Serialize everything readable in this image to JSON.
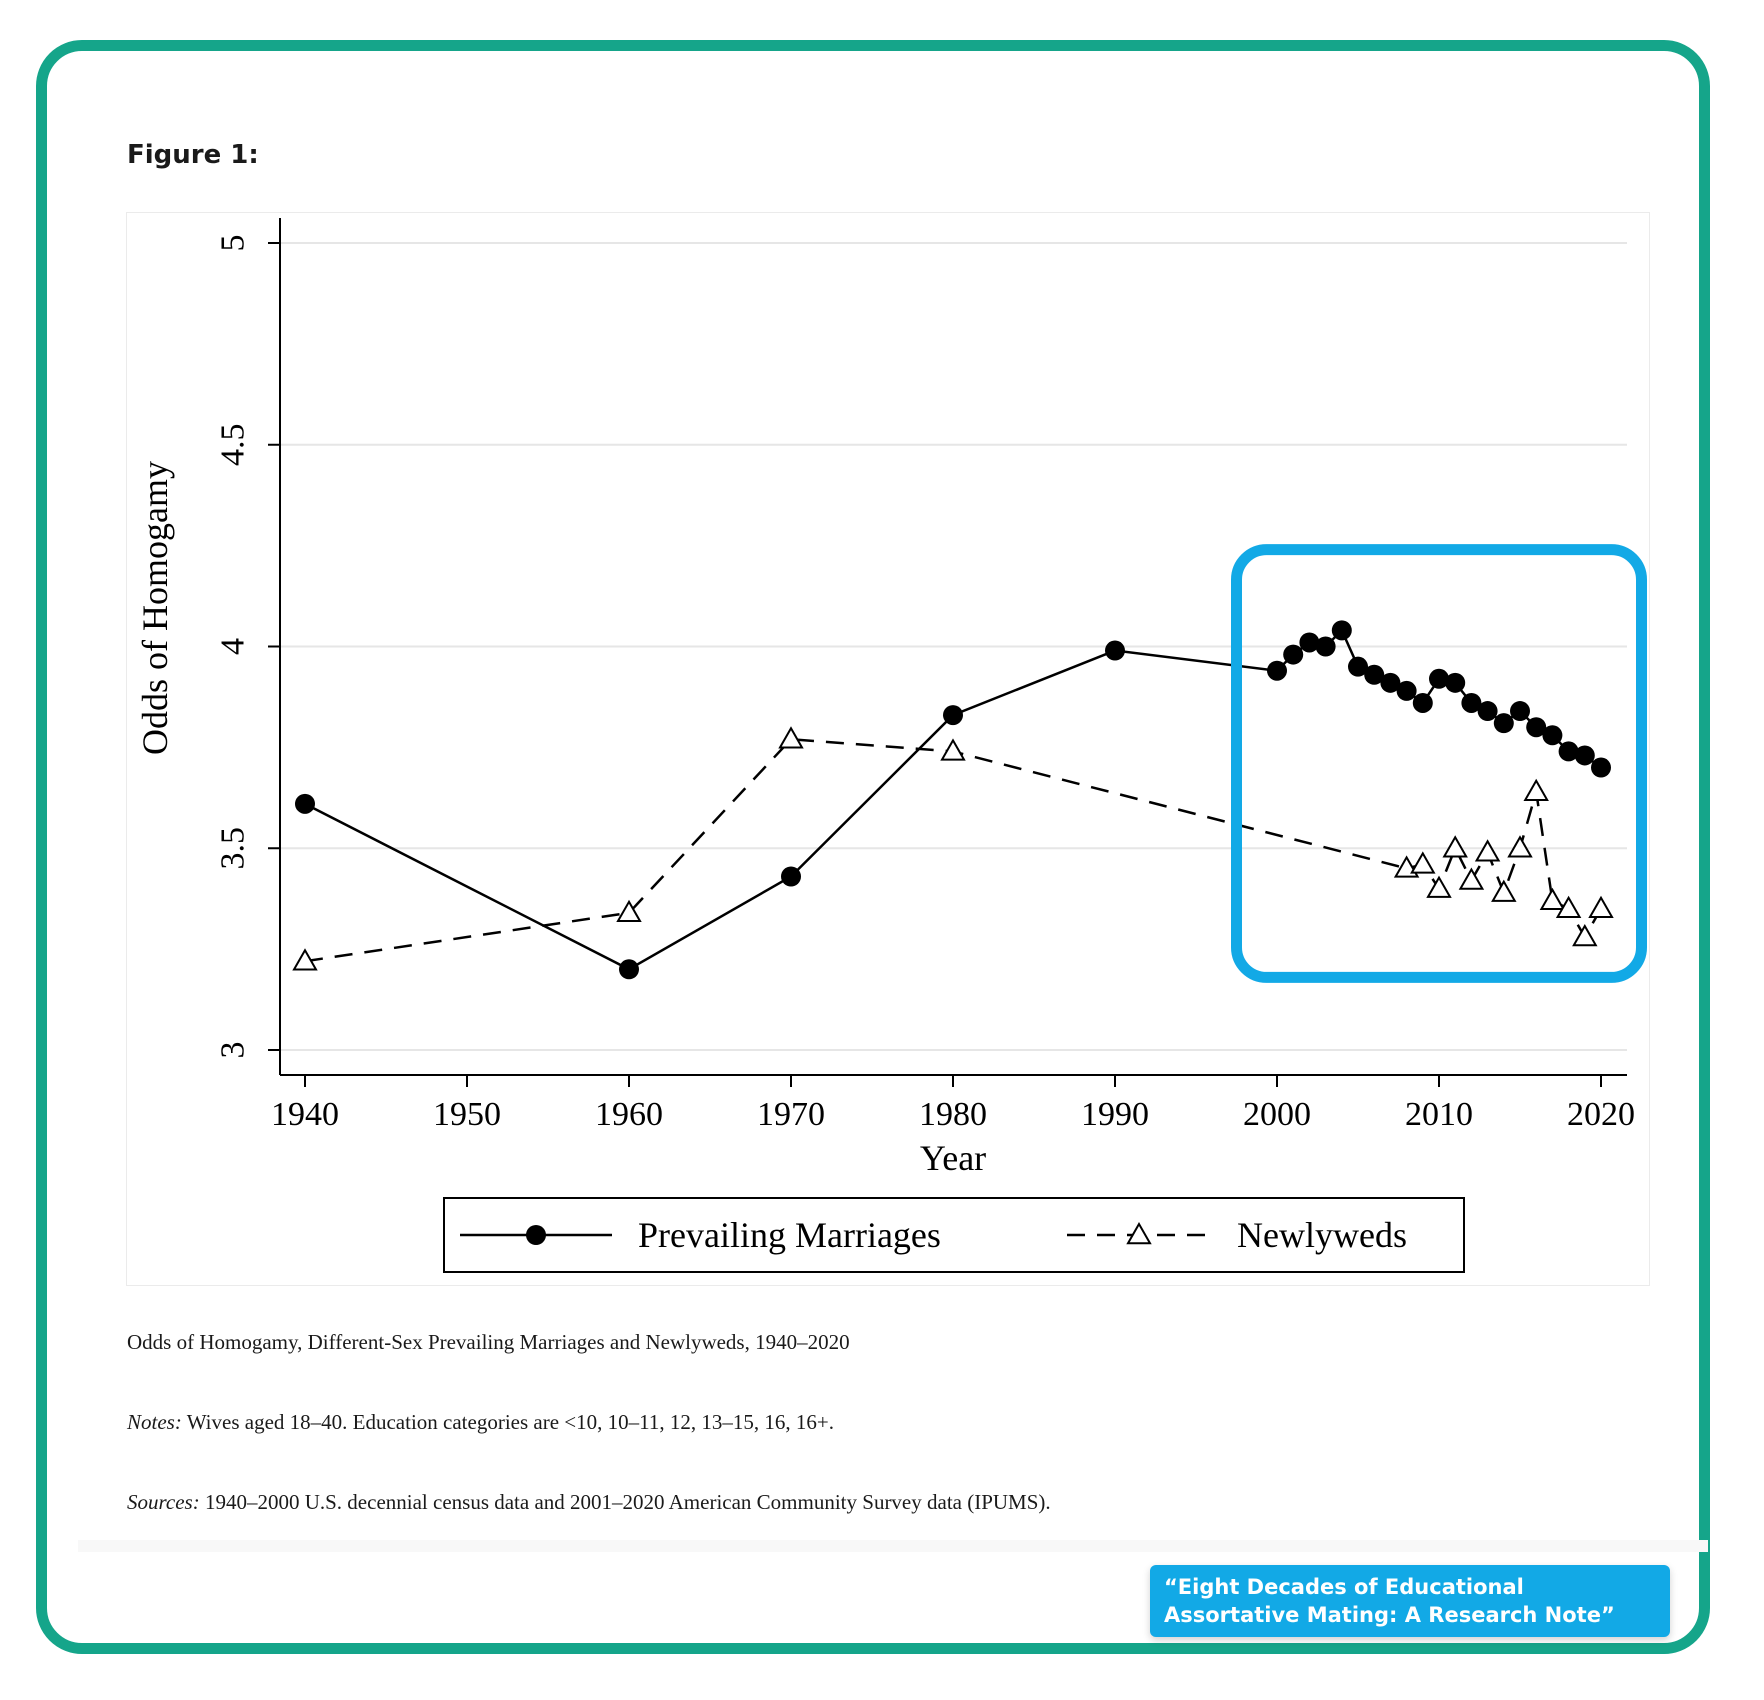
{
  "figure_label": "Figure 1:",
  "caption": "Odds of Homogamy, Different-Sex Prevailing Marriages and Newlyweds, 1940–2020",
  "notes": {
    "label": "Notes:",
    "text": "Wives aged 18–40. Education categories are <10, 10–11, 12, 13–15, 16, 16+."
  },
  "sources": {
    "label": "Sources:",
    "text": "1940–2000 U.S. decennial census data and 2001–2020 American Community Survey data (IPUMS)."
  },
  "badge": {
    "text": "“Eight Decades of Educational Assortative Mating: A Research Note”"
  },
  "colors": {
    "frame": "#15a58a",
    "highlight": "#12a9e6",
    "badge": "#12a9e6",
    "ink": "#000000"
  },
  "chart_data": {
    "type": "line",
    "title": "",
    "xlabel": "Year",
    "ylabel": "Odds of Homogamy",
    "xlim": [
      1940,
      2020
    ],
    "ylim": [
      3,
      5
    ],
    "x_ticks": [
      "1940",
      "1950",
      "1960",
      "1970",
      "1980",
      "1990",
      "2000",
      "2010",
      "2020"
    ],
    "y_ticks": [
      "3",
      "3.5",
      "4",
      "4.5",
      "5"
    ],
    "grid": true,
    "legend_position": "bottom",
    "highlight": {
      "x_range": [
        1997.5,
        2022.5
      ],
      "y_range": [
        3.18,
        4.24
      ]
    },
    "series": [
      {
        "name": "Prevailing Marriages",
        "style": "solid",
        "marker": "filled-circle",
        "x": [
          1940,
          1960,
          1970,
          1980,
          1990,
          2000,
          2001,
          2002,
          2003,
          2004,
          2005,
          2006,
          2007,
          2008,
          2009,
          2010,
          2011,
          2012,
          2013,
          2014,
          2015,
          2016,
          2017,
          2018,
          2019,
          2020
        ],
        "y": [
          3.61,
          3.2,
          3.43,
          3.83,
          3.99,
          3.94,
          3.98,
          4.01,
          4.0,
          4.04,
          3.95,
          3.93,
          3.91,
          3.89,
          3.86,
          3.92,
          3.91,
          3.86,
          3.84,
          3.81,
          3.84,
          3.8,
          3.78,
          3.74,
          3.73,
          3.7
        ]
      },
      {
        "name": "Newlyweds",
        "style": "dashed",
        "marker": "hollow-triangle",
        "x": [
          1940,
          1960,
          1970,
          1980,
          2008,
          2009,
          2010,
          2011,
          2012,
          2013,
          2014,
          2015,
          2016,
          2017,
          2018,
          2019,
          2020
        ],
        "y": [
          3.22,
          3.34,
          3.77,
          3.74,
          3.45,
          3.46,
          3.4,
          3.5,
          3.42,
          3.49,
          3.39,
          3.5,
          3.64,
          3.37,
          3.35,
          3.28,
          3.35
        ]
      }
    ]
  }
}
